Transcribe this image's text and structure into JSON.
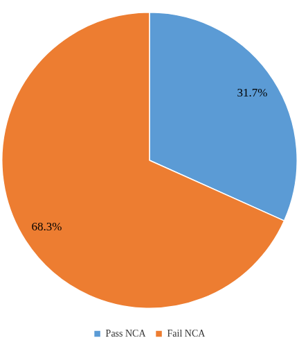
{
  "chart_data": {
    "type": "pie",
    "categories": [
      "Pass NCA",
      "Fail NCA"
    ],
    "values": [
      31.7,
      68.3
    ],
    "value_labels": [
      "31.7%",
      "68.3%"
    ],
    "colors": [
      "#5b9bd5",
      "#ed7d31"
    ],
    "legend": "bottom",
    "data_labels": true
  }
}
